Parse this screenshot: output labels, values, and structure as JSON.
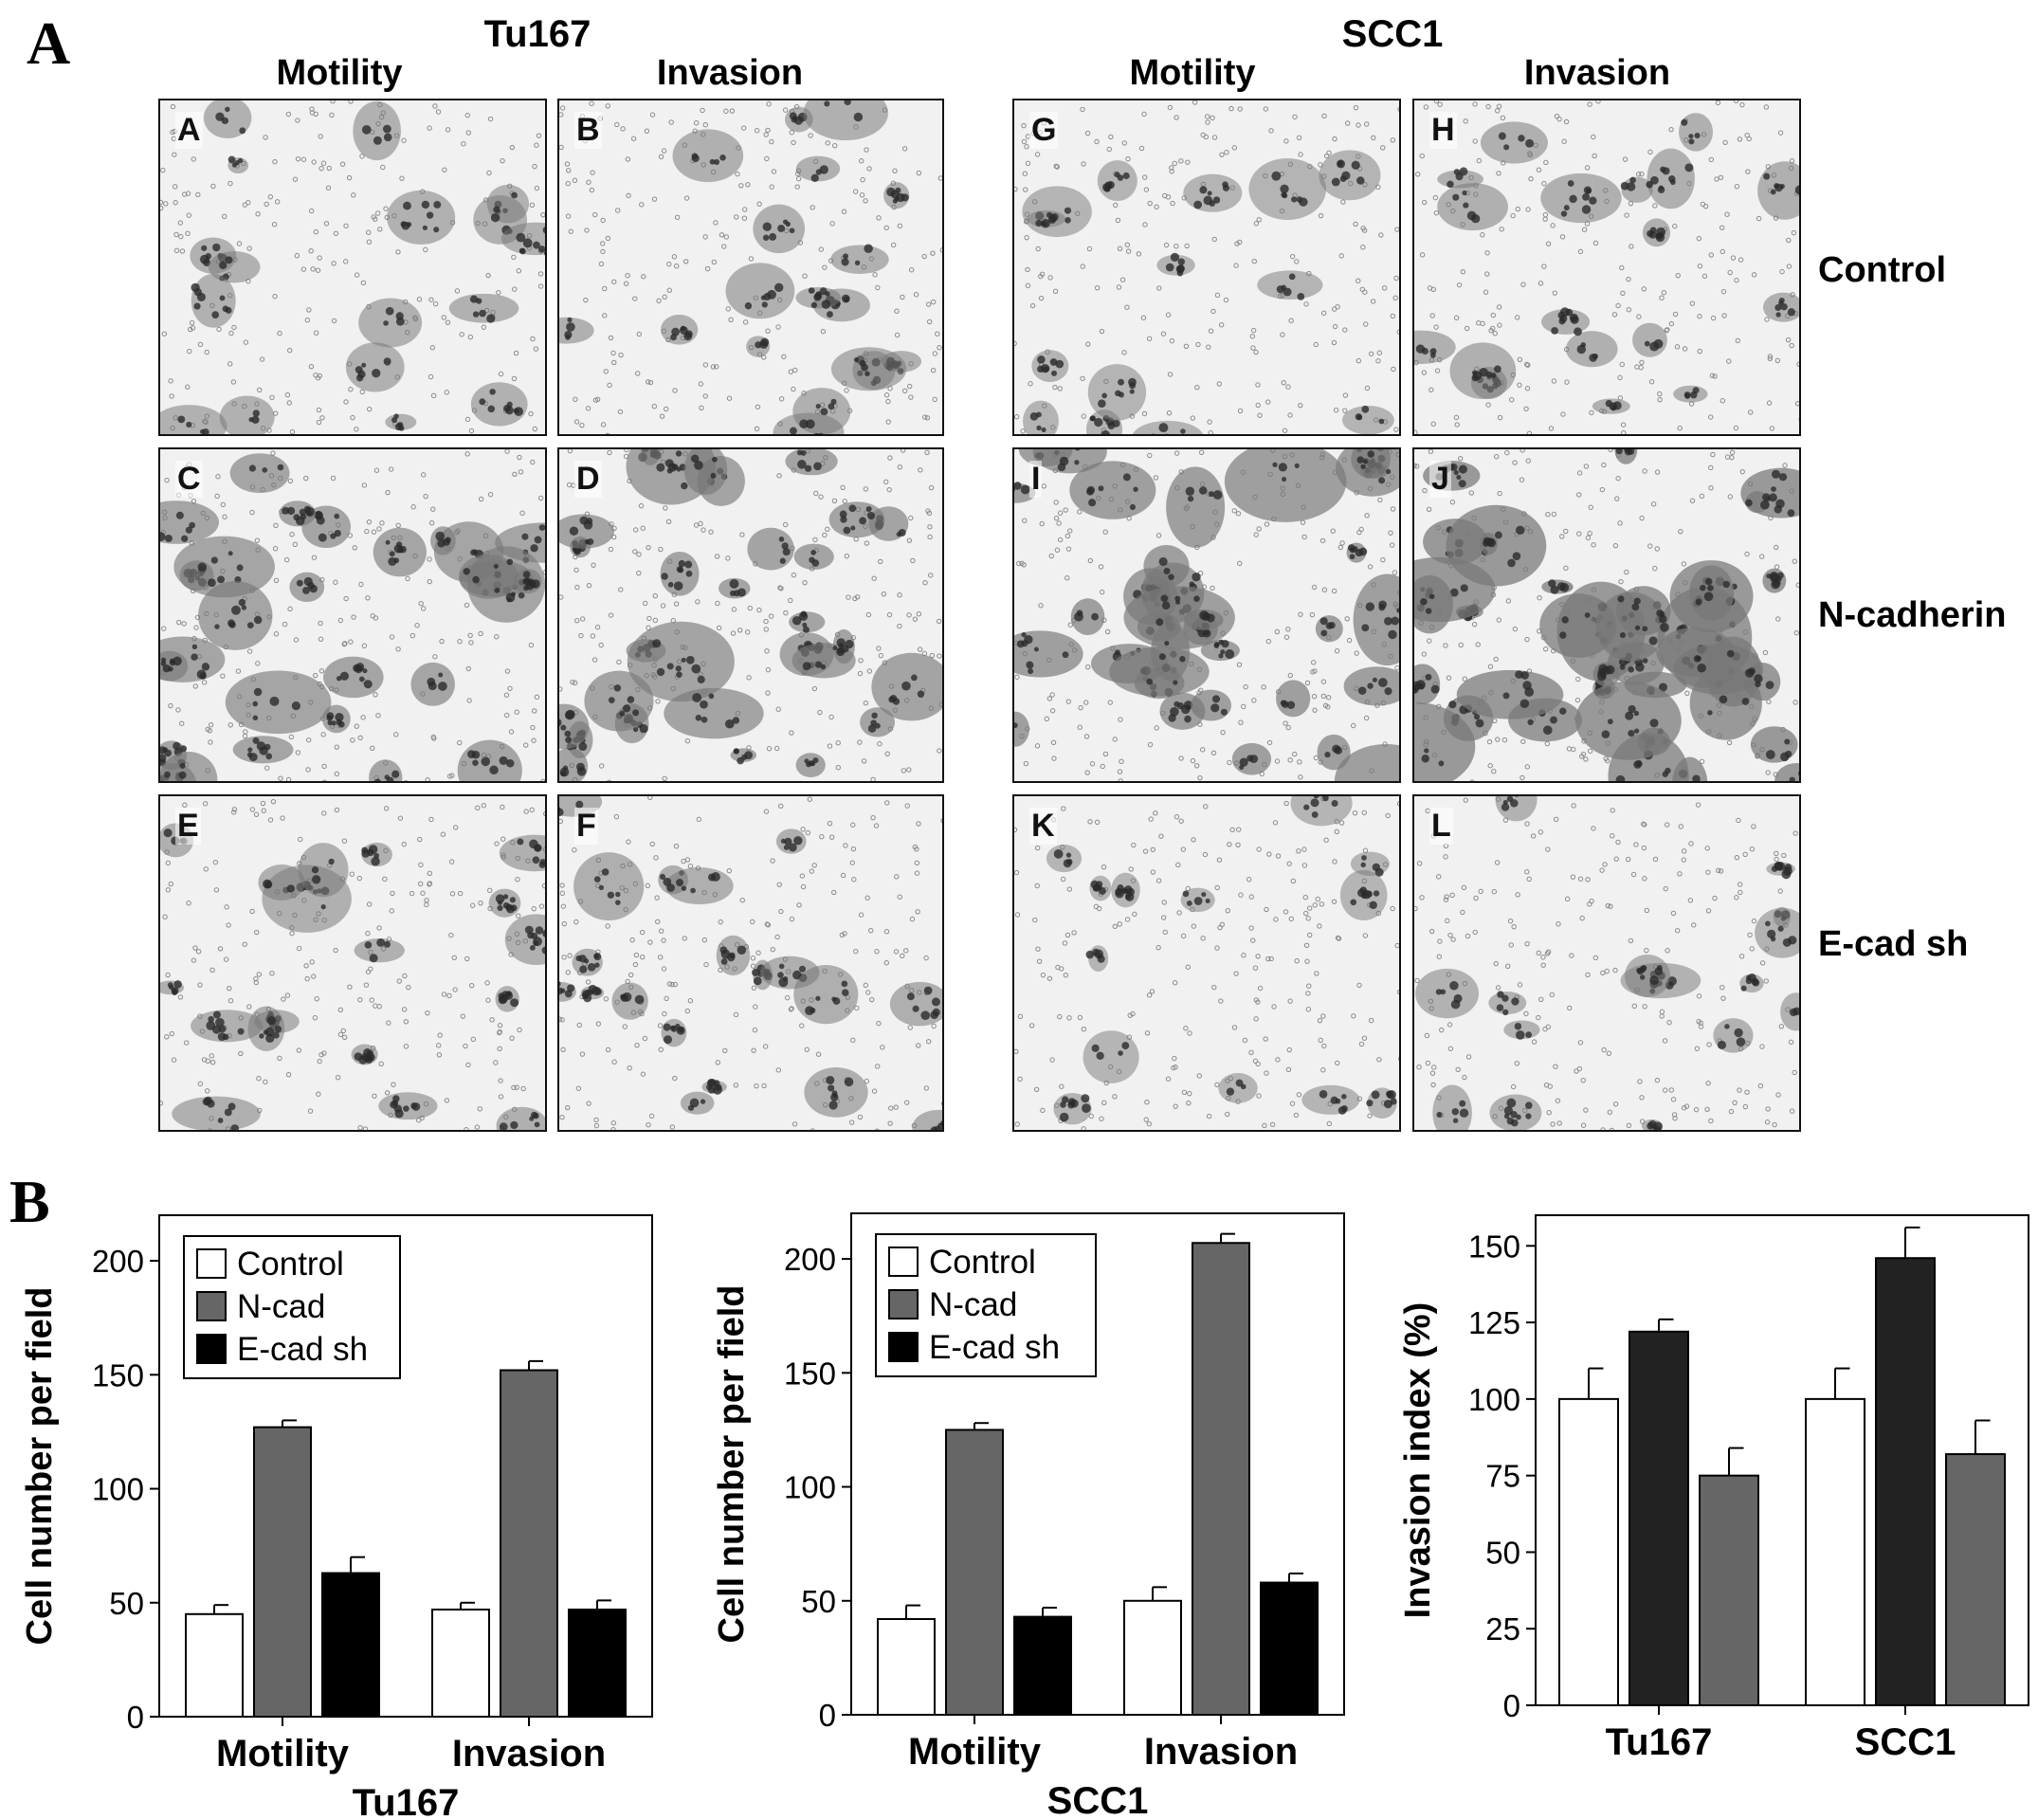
{
  "panel_a": {
    "label": "A",
    "groups": [
      {
        "title": "Tu167",
        "columns": [
          "Motility",
          "Invasion"
        ]
      },
      {
        "title": "SCC1",
        "columns": [
          "Motility",
          "Invasion"
        ]
      }
    ],
    "row_labels": [
      "Control",
      "N-cadherin",
      "E-cad sh"
    ],
    "images": [
      {
        "letter": "A",
        "density": 0.25
      },
      {
        "letter": "B",
        "density": 0.28
      },
      {
        "letter": "G",
        "density": 0.18
      },
      {
        "letter": "H",
        "density": 0.3
      },
      {
        "letter": "C",
        "density": 0.6
      },
      {
        "letter": "D",
        "density": 0.62
      },
      {
        "letter": "I",
        "density": 0.78
      },
      {
        "letter": "J",
        "density": 0.92
      },
      {
        "letter": "E",
        "density": 0.3
      },
      {
        "letter": "F",
        "density": 0.32
      },
      {
        "letter": "K",
        "density": 0.15
      },
      {
        "letter": "L",
        "density": 0.22
      }
    ]
  },
  "panel_b": {
    "label": "B"
  },
  "colors": {
    "control": "#ffffff",
    "ncad": "#666666",
    "ecad": "#000000",
    "dark": "#222222"
  },
  "chart_data": [
    {
      "type": "bar",
      "categories": [
        "Motility",
        "Invasion"
      ],
      "xlabel": "Tu167",
      "ylabel": "Cell number per field",
      "ylim": [
        0,
        220
      ],
      "yticks": [
        0,
        50,
        100,
        150,
        200
      ],
      "legend": "top-left",
      "series": [
        {
          "name": "Control",
          "values": [
            45,
            47
          ],
          "errors": [
            4,
            3
          ],
          "color": "#ffffff"
        },
        {
          "name": "N-cad",
          "values": [
            127,
            152
          ],
          "errors": [
            3,
            4
          ],
          "color": "#666666"
        },
        {
          "name": "E-cad sh",
          "values": [
            63,
            47
          ],
          "errors": [
            7,
            4
          ],
          "color": "#000000"
        }
      ]
    },
    {
      "type": "bar",
      "categories": [
        "Motility",
        "Invasion"
      ],
      "xlabel": "SCC1",
      "ylabel": "Cell number per field",
      "ylim": [
        0,
        220
      ],
      "yticks": [
        0,
        50,
        100,
        150,
        200
      ],
      "legend": "top-left",
      "series": [
        {
          "name": "Control",
          "values": [
            42,
            50
          ],
          "errors": [
            6,
            6
          ],
          "color": "#ffffff"
        },
        {
          "name": "N-cad",
          "values": [
            125,
            207
          ],
          "errors": [
            3,
            4
          ],
          "color": "#666666"
        },
        {
          "name": "E-cad sh",
          "values": [
            43,
            58
          ],
          "errors": [
            4,
            4
          ],
          "color": "#000000"
        }
      ]
    },
    {
      "type": "bar",
      "categories": [
        "Tu167",
        "SCC1"
      ],
      "xlabel": "",
      "ylabel": "Invasion index (%)",
      "ylim": [
        0,
        160
      ],
      "yticks": [
        0,
        25,
        50,
        75,
        100,
        125,
        150
      ],
      "legend": "none",
      "series": [
        {
          "values": [
            100,
            100
          ],
          "errors": [
            10,
            10
          ],
          "color": "#ffffff"
        },
        {
          "values": [
            122,
            146
          ],
          "errors": [
            4,
            10
          ],
          "color": "#222222"
        },
        {
          "values": [
            75,
            82
          ],
          "errors": [
            9,
            11
          ],
          "color": "#666666"
        }
      ]
    }
  ]
}
